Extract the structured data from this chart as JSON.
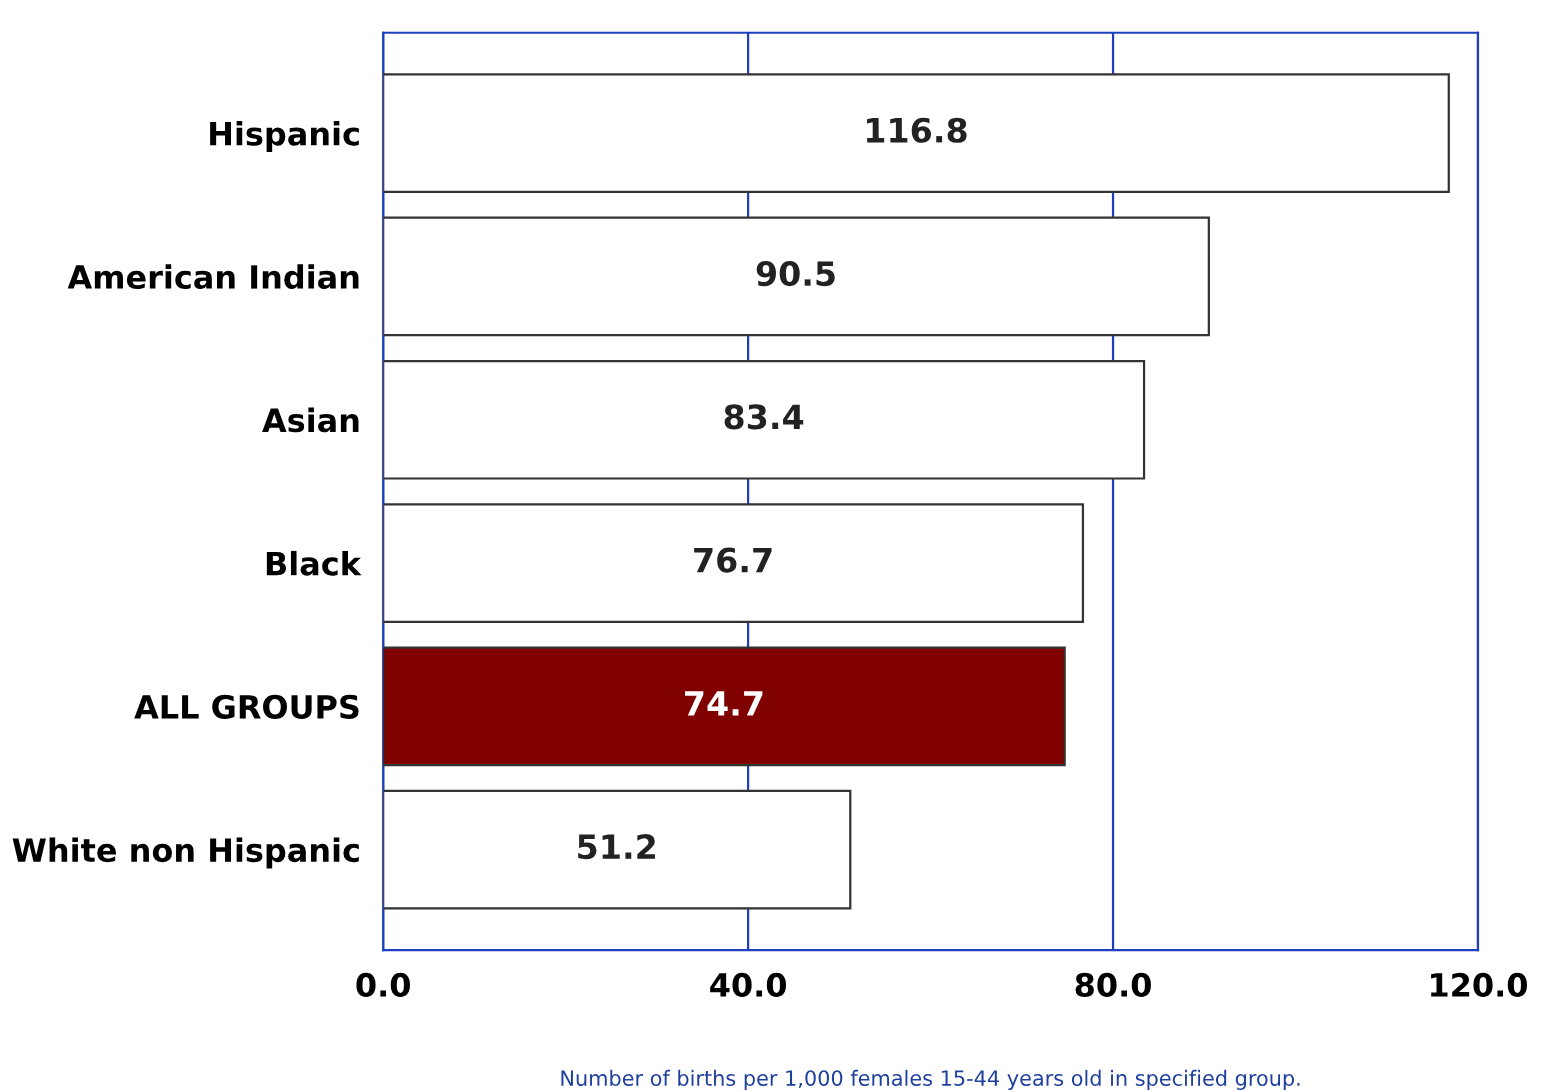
{
  "chart_data": {
    "type": "bar",
    "orientation": "horizontal",
    "categories": [
      "Hispanic",
      "American Indian",
      "Asian",
      "Black",
      "ALL GROUPS",
      "White non Hispanic"
    ],
    "values": [
      116.8,
      90.5,
      83.4,
      76.7,
      74.7,
      51.2
    ],
    "colors": [
      "#ffffff",
      "#ffffff",
      "#ffffff",
      "#ffffff",
      "#800000",
      "#ffffff"
    ],
    "xlim": [
      0,
      120
    ],
    "xticks": [
      {
        "value": 0,
        "label": "0.0"
      },
      {
        "value": 40,
        "label": "40.0"
      },
      {
        "value": 80,
        "label": "80.0"
      },
      {
        "value": 120,
        "label": "120.0"
      }
    ],
    "grid": "x",
    "data_labels": true,
    "xlabel": "Number of births per 1,000 females 15-44 years old in specified group."
  }
}
